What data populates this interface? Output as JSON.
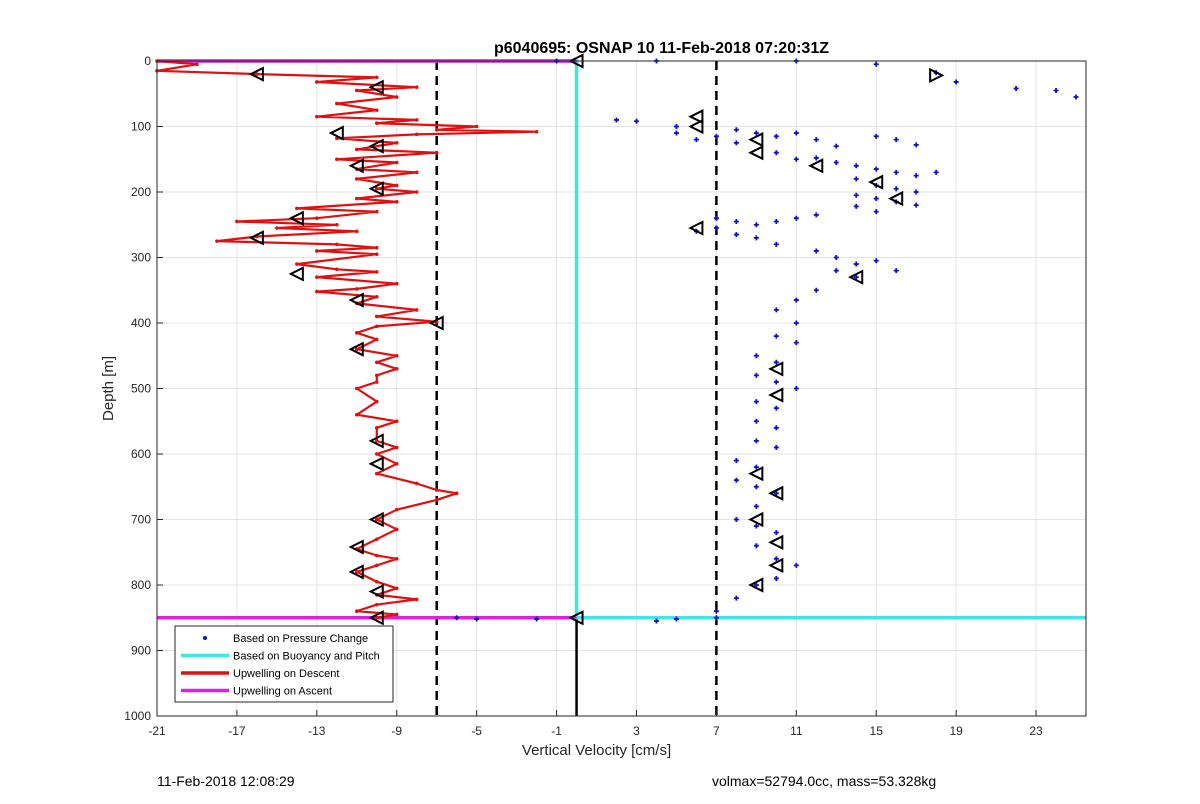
{
  "footer": {
    "left": "11-Feb-2018 12:08:29",
    "right": "volmax=52794.0cc, mass=53.328kg"
  },
  "chart_data": {
    "type": "line",
    "title": "p6040695: OSNAP 10 11-Feb-2018 07:20:31Z",
    "xlabel": "Vertical Velocity [cm/s]",
    "ylabel": "Depth [m]",
    "xlim": [
      -21,
      25.5
    ],
    "ylim": [
      1000,
      0
    ],
    "y_reversed": true,
    "grid": true,
    "legend_position": "bottom-left",
    "xticks": [
      -21,
      -17,
      -13,
      -9,
      -5,
      -1,
      3,
      7,
      11,
      15,
      19,
      23
    ],
    "yticks": [
      0,
      100,
      200,
      300,
      400,
      500,
      600,
      700,
      800,
      900,
      1000
    ],
    "colors": {
      "pressure": "#1010c8",
      "buoyancy": "#3ee6e6",
      "descent": "#e01010",
      "ascent": "#e020e0",
      "reference": "#000000"
    },
    "series": [
      {
        "name": "Based on Pressure Change",
        "kind": "scatter",
        "points": [
          [
            -1,
            0
          ],
          [
            4,
            0
          ],
          [
            11,
            0
          ],
          [
            15,
            5
          ],
          [
            18,
            18
          ],
          [
            19,
            32
          ],
          [
            22,
            42
          ],
          [
            24,
            45
          ],
          [
            25,
            55
          ],
          [
            2,
            90
          ],
          [
            3,
            92
          ],
          [
            5,
            100
          ],
          [
            5,
            110
          ],
          [
            6,
            120
          ],
          [
            7,
            115
          ],
          [
            8,
            105
          ],
          [
            8,
            125
          ],
          [
            9,
            110
          ],
          [
            10,
            115
          ],
          [
            11,
            110
          ],
          [
            12,
            120
          ],
          [
            13,
            130
          ],
          [
            15,
            115
          ],
          [
            16,
            120
          ],
          [
            17,
            128
          ],
          [
            10,
            140
          ],
          [
            11,
            150
          ],
          [
            12,
            148
          ],
          [
            13,
            155
          ],
          [
            14,
            160
          ],
          [
            15,
            165
          ],
          [
            16,
            170
          ],
          [
            17,
            175
          ],
          [
            18,
            170
          ],
          [
            14,
            180
          ],
          [
            15,
            190
          ],
          [
            16,
            195
          ],
          [
            17,
            200
          ],
          [
            14,
            205
          ],
          [
            15,
            210
          ],
          [
            16,
            215
          ],
          [
            17,
            220
          ],
          [
            14,
            222
          ],
          [
            15,
            230
          ],
          [
            7,
            240
          ],
          [
            8,
            245
          ],
          [
            9,
            250
          ],
          [
            10,
            245
          ],
          [
            11,
            240
          ],
          [
            12,
            235
          ],
          [
            6,
            260
          ],
          [
            7,
            255
          ],
          [
            8,
            265
          ],
          [
            9,
            270
          ],
          [
            10,
            280
          ],
          [
            12,
            290
          ],
          [
            13,
            300
          ],
          [
            14,
            310
          ],
          [
            15,
            305
          ],
          [
            16,
            320
          ],
          [
            13,
            320
          ],
          [
            14,
            330
          ],
          [
            12,
            350
          ],
          [
            11,
            365
          ],
          [
            10,
            380
          ],
          [
            11,
            400
          ],
          [
            10,
            420
          ],
          [
            11,
            430
          ],
          [
            9,
            450
          ],
          [
            10,
            460
          ],
          [
            9,
            480
          ],
          [
            10,
            490
          ],
          [
            11,
            500
          ],
          [
            9,
            520
          ],
          [
            10,
            530
          ],
          [
            9,
            550
          ],
          [
            10,
            560
          ],
          [
            9,
            580
          ],
          [
            10,
            590
          ],
          [
            8,
            610
          ],
          [
            9,
            620
          ],
          [
            8,
            640
          ],
          [
            9,
            650
          ],
          [
            10,
            660
          ],
          [
            9,
            680
          ],
          [
            8,
            700
          ],
          [
            9,
            710
          ],
          [
            10,
            720
          ],
          [
            9,
            740
          ],
          [
            10,
            760
          ],
          [
            11,
            770
          ],
          [
            10,
            790
          ],
          [
            9,
            800
          ],
          [
            8,
            820
          ],
          [
            7,
            840
          ],
          [
            7,
            850
          ],
          [
            4,
            855
          ],
          [
            5,
            852
          ],
          [
            -5,
            852
          ],
          [
            -6,
            850
          ],
          [
            -2,
            852
          ]
        ]
      },
      {
        "name": "Based on Buoyancy and Pitch",
        "kind": "line",
        "points": [
          [
            -21,
            0
          ],
          [
            0,
            0
          ],
          [
            0,
            850
          ],
          [
            25.5,
            850
          ]
        ]
      },
      {
        "name": "Upwelling on Descent",
        "kind": "line",
        "points": [
          [
            -21,
            0
          ],
          [
            -19,
            5
          ],
          [
            -21,
            15
          ],
          [
            -16,
            20
          ],
          [
            -10,
            25
          ],
          [
            -13,
            32
          ],
          [
            -8,
            40
          ],
          [
            -11,
            45
          ],
          [
            -9,
            55
          ],
          [
            -12,
            65
          ],
          [
            -10,
            75
          ],
          [
            -13,
            85
          ],
          [
            -8,
            90
          ],
          [
            -10,
            95
          ],
          [
            -5,
            100
          ],
          [
            -7,
            105
          ],
          [
            -2,
            108
          ],
          [
            -8,
            112
          ],
          [
            -12,
            118
          ],
          [
            -9,
            125
          ],
          [
            -11,
            135
          ],
          [
            -7,
            140
          ],
          [
            -12,
            150
          ],
          [
            -9,
            155
          ],
          [
            -11,
            165
          ],
          [
            -8,
            170
          ],
          [
            -11,
            180
          ],
          [
            -9,
            190
          ],
          [
            -10,
            195
          ],
          [
            -8,
            200
          ],
          [
            -11,
            210
          ],
          [
            -9,
            215
          ],
          [
            -14,
            225
          ],
          [
            -10,
            230
          ],
          [
            -13,
            240
          ],
          [
            -17,
            245
          ],
          [
            -12,
            250
          ],
          [
            -15,
            255
          ],
          [
            -11,
            260
          ],
          [
            -16,
            268
          ],
          [
            -18,
            275
          ],
          [
            -12,
            280
          ],
          [
            -10,
            285
          ],
          [
            -13,
            290
          ],
          [
            -10,
            295
          ],
          [
            -14,
            310
          ],
          [
            -12,
            318
          ],
          [
            -10,
            322
          ],
          [
            -13,
            330
          ],
          [
            -9,
            340
          ],
          [
            -11,
            348
          ],
          [
            -13,
            352
          ],
          [
            -10,
            360
          ],
          [
            -11,
            370
          ],
          [
            -8,
            380
          ],
          [
            -10,
            390
          ],
          [
            -7,
            398
          ],
          [
            -10,
            405
          ],
          [
            -11,
            415
          ],
          [
            -10,
            425
          ],
          [
            -11,
            440
          ],
          [
            -9,
            450
          ],
          [
            -10,
            460
          ],
          [
            -9,
            470
          ],
          [
            -10,
            480
          ],
          [
            -10,
            490
          ],
          [
            -11,
            500
          ],
          [
            -10,
            520
          ],
          [
            -11,
            540
          ],
          [
            -9,
            550
          ],
          [
            -10,
            560
          ],
          [
            -10,
            580
          ],
          [
            -9,
            590
          ],
          [
            -10,
            600
          ],
          [
            -9,
            615
          ],
          [
            -10,
            630
          ],
          [
            -8,
            645
          ],
          [
            -7,
            655
          ],
          [
            -6,
            660
          ],
          [
            -7,
            670
          ],
          [
            -9,
            685
          ],
          [
            -10,
            700
          ],
          [
            -9,
            715
          ],
          [
            -10,
            730
          ],
          [
            -11,
            745
          ],
          [
            -10,
            755
          ],
          [
            -9,
            760
          ],
          [
            -10,
            770
          ],
          [
            -11,
            780
          ],
          [
            -10,
            795
          ],
          [
            -9,
            805
          ],
          [
            -10,
            815
          ],
          [
            -8,
            822
          ],
          [
            -10,
            830
          ],
          [
            -11,
            840
          ],
          [
            -9,
            845
          ],
          [
            -10,
            850
          ]
        ]
      },
      {
        "name": "Upwelling on Ascent",
        "kind": "line",
        "points": [
          [
            -21,
            0
          ],
          [
            0,
            0
          ],
          [
            -21,
            850
          ],
          [
            0,
            850
          ]
        ]
      }
    ],
    "reference_lines": {
      "dashed_x": [
        -7,
        7
      ],
      "solid_segment": {
        "x": 0,
        "y_from": 850,
        "y_to": 1000
      }
    },
    "markers": {
      "left_triangles": [
        [
          -16,
          20
        ],
        [
          -10,
          40
        ],
        [
          -12,
          110
        ],
        [
          -10,
          130
        ],
        [
          -11,
          160
        ],
        [
          -10,
          195
        ],
        [
          -14,
          240
        ],
        [
          -16,
          270
        ],
        [
          -14,
          325
        ],
        [
          -11,
          365
        ],
        [
          -7,
          400
        ],
        [
          -11,
          440
        ],
        [
          -10,
          580
        ],
        [
          -10,
          615
        ],
        [
          -10,
          700
        ],
        [
          -11,
          742
        ],
        [
          -11,
          780
        ],
        [
          -10,
          810
        ],
        [
          -10,
          850
        ],
        [
          6,
          85
        ],
        [
          6,
          100
        ],
        [
          9,
          120
        ],
        [
          9,
          140
        ],
        [
          12,
          160
        ],
        [
          15,
          185
        ],
        [
          16,
          210
        ],
        [
          6,
          255
        ],
        [
          14,
          330
        ],
        [
          10,
          470
        ],
        [
          10,
          510
        ],
        [
          9,
          630
        ],
        [
          10,
          660
        ],
        [
          9,
          700
        ],
        [
          10,
          735
        ],
        [
          10,
          770
        ],
        [
          9,
          800
        ],
        [
          0,
          0
        ],
        [
          0,
          850
        ]
      ],
      "right_triangles": [
        [
          18,
          22
        ]
      ]
    }
  }
}
